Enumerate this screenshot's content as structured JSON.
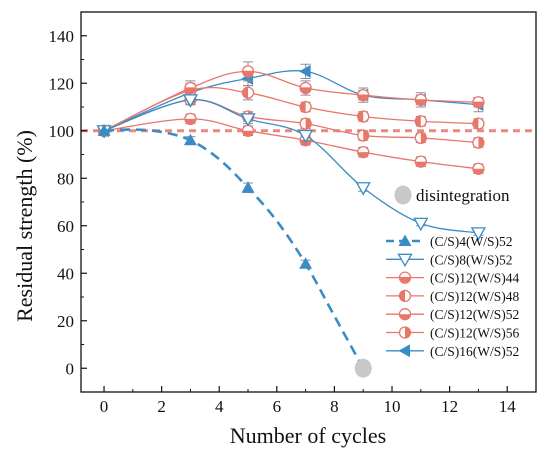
{
  "chart_data": {
    "type": "line",
    "xlabel": "Number of cycles",
    "ylabel": "Residual strength (%)",
    "xlim": [
      -0.8,
      15
    ],
    "ylim": [
      -10,
      150
    ],
    "xticks": [
      "0",
      "2",
      "4",
      "6",
      "8",
      "10",
      "12",
      "14"
    ],
    "yticks": [
      "0",
      "20",
      "40",
      "60",
      "80",
      "100",
      "120",
      "140"
    ],
    "reference_line": {
      "y": 100,
      "style": "dashed",
      "color": "#e88a80"
    },
    "annotation": {
      "label": "disintegration",
      "marker_color": "#c8c8c8",
      "point": {
        "x": 9,
        "y": 0
      }
    },
    "legend_position": "right",
    "series": [
      {
        "name": "(C/S)4(W/S)52",
        "color": "#3a8cc4",
        "marker": "triangle-up",
        "style": "dashed",
        "x": [
          0,
          3,
          5,
          7,
          9
        ],
        "y": [
          100,
          96,
          76,
          44,
          0
        ],
        "err": [
          2,
          1.5,
          2,
          1.5,
          0
        ],
        "curve_x": [
          0,
          1,
          2,
          3,
          4,
          5,
          6,
          7,
          8,
          9
        ],
        "curve_y": [
          100,
          100.5,
          99.5,
          96,
          88,
          76,
          62,
          44,
          22,
          0
        ]
      },
      {
        "name": "(C/S)8(W/S)52",
        "color": "#3a8cc4",
        "marker": "triangle-down-open",
        "style": "solid",
        "x": [
          0,
          3,
          5,
          7,
          9,
          11,
          13
        ],
        "y": [
          100,
          113,
          105,
          98,
          76,
          61,
          57
        ],
        "err": [
          2,
          2,
          2,
          2,
          1.5,
          1,
          1
        ]
      },
      {
        "name": "(C/S)12(W/S)44",
        "color": "#e8776a",
        "marker": "circle-h",
        "style": "solid",
        "x": [
          0,
          3,
          5,
          7,
          9,
          11,
          13
        ],
        "y": [
          100,
          118,
          125,
          118,
          115,
          113,
          112
        ],
        "err": [
          2,
          3,
          4,
          3,
          2,
          2,
          2
        ]
      },
      {
        "name": "(C/S)12(W/S)48",
        "color": "#e8776a",
        "marker": "circle-left",
        "style": "solid",
        "x": [
          0,
          3,
          5,
          7,
          9,
          11,
          13
        ],
        "y": [
          100,
          117,
          116,
          110,
          106,
          104,
          103
        ],
        "err": [
          2,
          3,
          3,
          2,
          2,
          2,
          2
        ]
      },
      {
        "name": "(C/S)12(W/S)52",
        "color": "#e8776a",
        "marker": "circle-bottom",
        "style": "solid",
        "x": [
          0,
          3,
          5,
          7,
          9,
          11,
          13
        ],
        "y": [
          100,
          105,
          100,
          96,
          91,
          87,
          84
        ],
        "err": [
          2,
          2,
          2,
          2,
          2,
          2,
          2
        ]
      },
      {
        "name": "(C/S)12(W/S)56",
        "color": "#e8776a",
        "marker": "circle-right",
        "style": "solid",
        "x": [
          0,
          3,
          5,
          7,
          9,
          11,
          13
        ],
        "y": [
          100,
          113,
          106,
          103,
          98,
          97,
          95
        ],
        "err": [
          2,
          2,
          2,
          2,
          2,
          2,
          2
        ]
      },
      {
        "name": "(C/S)16(W/S)52",
        "color": "#3a8cc4",
        "marker": "triangle-left",
        "style": "solid",
        "x": [
          0,
          3,
          5,
          7,
          9,
          11,
          13
        ],
        "y": [
          100,
          116,
          122,
          125,
          115,
          113,
          111
        ],
        "err": [
          2,
          3,
          3,
          3,
          3,
          3,
          3
        ]
      }
    ]
  }
}
